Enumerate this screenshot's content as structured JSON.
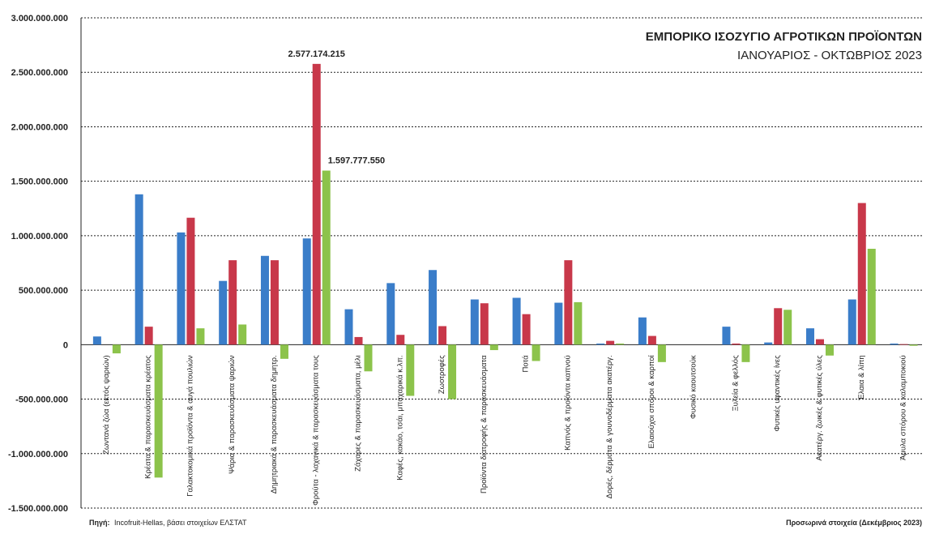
{
  "title": "ΕΜΠΟΡΙΚΟ ΙΣΟΖΥΓΙΟ ΑΓΡΟΤΙΚΩΝ ΠΡΟΪΟΝΤΩΝ",
  "subtitle": "ΙΑΝΟΥΑΡΙΟΣ - ΟΚΤΩΒΡΙΟΣ 2023",
  "source_label": "Πηγή:",
  "source_text": "Incofruit-Hellas, βάσει στοιχείων ΕΛΣΤΑΤ",
  "note": "Προσωρινά στοιχεία (Δεκέμβριος 2023)",
  "colors": {
    "series1": "#3a7dc9",
    "series2": "#c8384a",
    "series3": "#8cc34b",
    "grid": "#222222",
    "axis": "#222222"
  },
  "chart_data": {
    "type": "bar",
    "ylim": [
      -1500000000,
      3000000000
    ],
    "yticks": [
      {
        "value": 3000000000,
        "label": "3.000.000.000"
      },
      {
        "value": 2500000000,
        "label": "2.500.000.000"
      },
      {
        "value": 2000000000,
        "label": "2.000.000.000"
      },
      {
        "value": 1500000000,
        "label": "1.500.000.000"
      },
      {
        "value": 1000000000,
        "label": "1.000.000.000"
      },
      {
        "value": 500000000,
        "label": "500.000.000"
      },
      {
        "value": 0,
        "label": "0"
      },
      {
        "value": -500000000,
        "label": "-500.000.000"
      },
      {
        "value": -1000000000,
        "label": "-1.000.000.000"
      },
      {
        "value": -1500000000,
        "label": "-1.500.000.000"
      }
    ],
    "grid": true,
    "categories": [
      "Ζωντανά ζώα (εκτός ψαριών)",
      "Κρέατα & παρασκευάσματα κρέατος",
      "Γαλακτοκομικά προϊόντα & αυγά πουλιών",
      "Ψάρια & παρασκευάσματα ψαριών",
      "Δημητριακά & παρασκευάσματα δημητρ.",
      "Φρούτα - λαχανικά & παρασκευάσματα τους",
      "Ζάχαρες & παρασκευάσματα, μέλι",
      "Καφές, κακάο, τσάι, μπαχαρικά κ.λπ.",
      "Ζωοτροφές",
      "Προϊόντα διατροφής & παρασκευάσματα",
      "Ποτά",
      "Καπνός & προϊόντα καπνού",
      "Δορές, δέρματα & γουνοδέρματα ακατέργ.",
      "Ελαιούχοι σπόροι & καρποί",
      "Φυσικό καουτσούκ",
      "Ξυλεία & φελλός",
      "Φυτικές υφαντικές ίνες",
      "Ακατέργ. ζωικές & φυτικές ύλες",
      "Έλαια & λίπη",
      "Άμυλα σπόρου & καλαμποκιού"
    ],
    "series": [
      {
        "values": [
          75000000,
          1380000000,
          1030000000,
          585000000,
          815000000,
          975000000,
          325000000,
          565000000,
          685000000,
          415000000,
          430000000,
          385000000,
          10000000,
          250000000,
          0,
          165000000,
          20000000,
          150000000,
          415000000,
          10000000
        ]
      },
      {
        "values": [
          0,
          165000000,
          1165000000,
          775000000,
          775000000,
          2577174215,
          70000000,
          90000000,
          170000000,
          380000000,
          280000000,
          775000000,
          35000000,
          80000000,
          0,
          10000000,
          335000000,
          50000000,
          1300000000,
          5000000
        ]
      },
      {
        "values": [
          -80000000,
          -1220000000,
          150000000,
          185000000,
          -130000000,
          1597777550,
          -245000000,
          -470000000,
          -500000000,
          -50000000,
          -150000000,
          390000000,
          10000000,
          -160000000,
          0,
          -160000000,
          320000000,
          -100000000,
          880000000,
          -10000000
        ]
      }
    ],
    "data_labels": [
      {
        "text": "2.577.174.215",
        "category_index": 5,
        "series_index": 1,
        "value": 2577174215
      },
      {
        "text": "1.597.777.550",
        "category_index": 5,
        "series_index": 2,
        "value": 1597777550
      }
    ]
  }
}
